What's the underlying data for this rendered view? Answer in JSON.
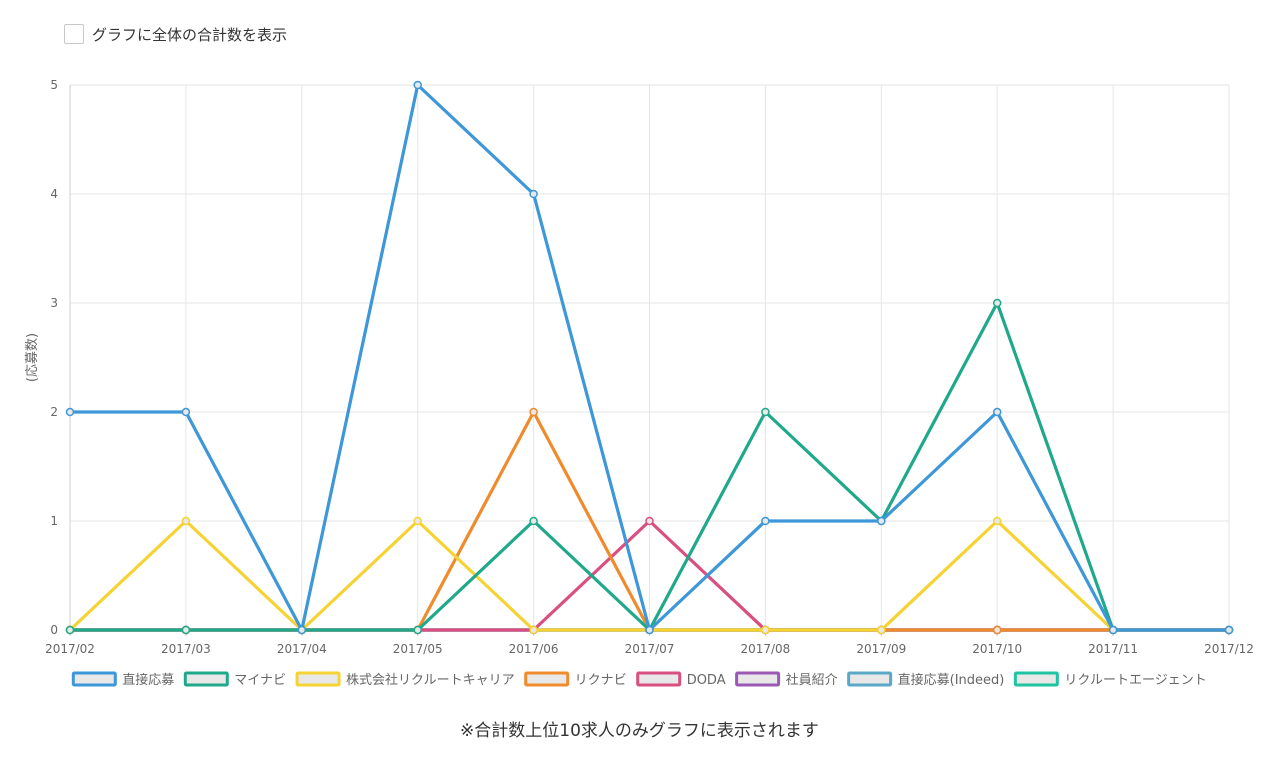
{
  "toggle": {
    "label": "グラフに全体の合計数を表示",
    "checked": false
  },
  "chart_data": {
    "type": "line",
    "categories": [
      "2017/02",
      "2017/03",
      "2017/04",
      "2017/05",
      "2017/06",
      "2017/07",
      "2017/08",
      "2017/09",
      "2017/10",
      "2017/11",
      "2017/12"
    ],
    "ylabel": "(応募数)",
    "ylim": [
      0,
      5
    ],
    "yticks": [
      "0",
      "1",
      "2",
      "3",
      "4",
      "5"
    ],
    "grid": true,
    "legend_position": "bottom",
    "series": [
      {
        "name": "直接応募",
        "color": "#3d97d8",
        "values": [
          2,
          2,
          0,
          5,
          4,
          0,
          1,
          1,
          2,
          0,
          0
        ]
      },
      {
        "name": "マイナビ",
        "color": "#1fa98a",
        "values": [
          0,
          0,
          0,
          0,
          1,
          0,
          2,
          1,
          3,
          0,
          0
        ]
      },
      {
        "name": "株式会社リクルートキャリア",
        "color": "#f5d333",
        "values": [
          0,
          1,
          0,
          1,
          0,
          0,
          0,
          0,
          1,
          0,
          0
        ]
      },
      {
        "name": "リクナビ",
        "color": "#ef8b2c",
        "values": [
          0,
          0,
          0,
          0,
          2,
          0,
          0,
          0,
          0,
          0,
          0
        ]
      },
      {
        "name": "DODA",
        "color": "#d94f7f",
        "values": [
          0,
          0,
          0,
          0,
          0,
          1,
          0,
          0,
          0,
          0,
          0
        ]
      },
      {
        "name": "社員紹介",
        "color": "#9b59b6",
        "values": [
          0,
          0,
          0,
          0,
          0,
          0,
          0,
          0,
          0,
          0,
          0
        ]
      },
      {
        "name": "直接応募(Indeed)",
        "color": "#5aa8c8",
        "values": [
          0,
          0,
          0,
          0,
          0,
          0,
          0,
          0,
          0,
          0,
          0
        ]
      },
      {
        "name": "リクルートエージェント",
        "color": "#1fc4a0",
        "values": [
          0,
          0,
          0,
          0,
          0,
          0,
          0,
          0,
          0,
          0,
          0
        ]
      }
    ]
  },
  "footnote": "※合計数上位10求人のみグラフに表示されます"
}
